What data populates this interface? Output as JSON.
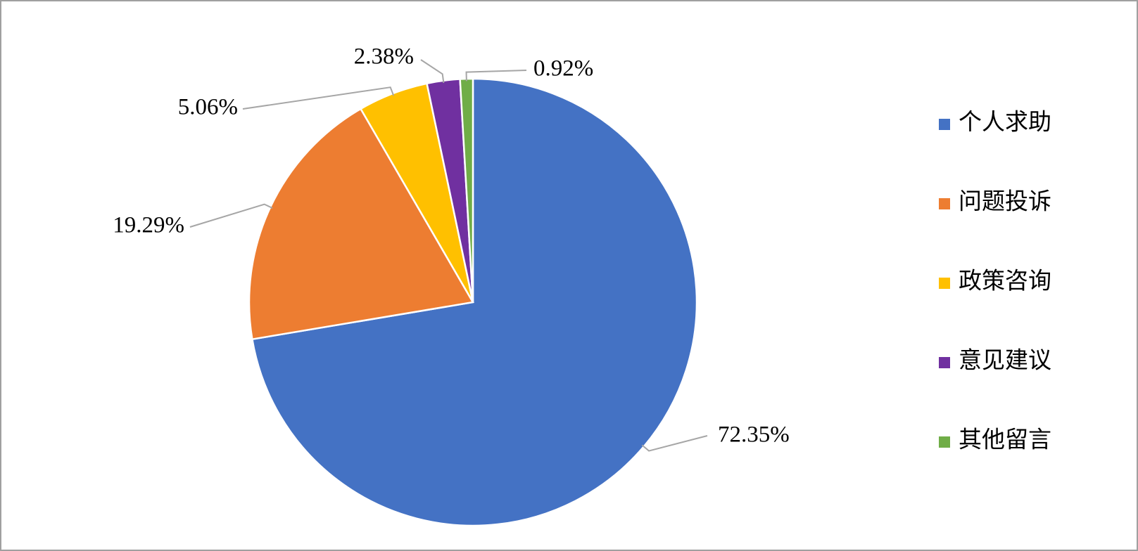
{
  "chart_data": {
    "type": "pie",
    "categories": [
      "个人求助",
      "问题投诉",
      "政策咨询",
      "意见建议",
      "其他留言"
    ],
    "values": [
      72.35,
      19.29,
      5.06,
      2.38,
      0.92
    ],
    "value_labels": [
      "72.35%",
      "19.29%",
      "5.06%",
      "2.38%",
      "0.92%"
    ],
    "colors": [
      "#4472c4",
      "#ed7d31",
      "#ffc000",
      "#7030a0",
      "#70ad47"
    ],
    "legend": "right"
  }
}
